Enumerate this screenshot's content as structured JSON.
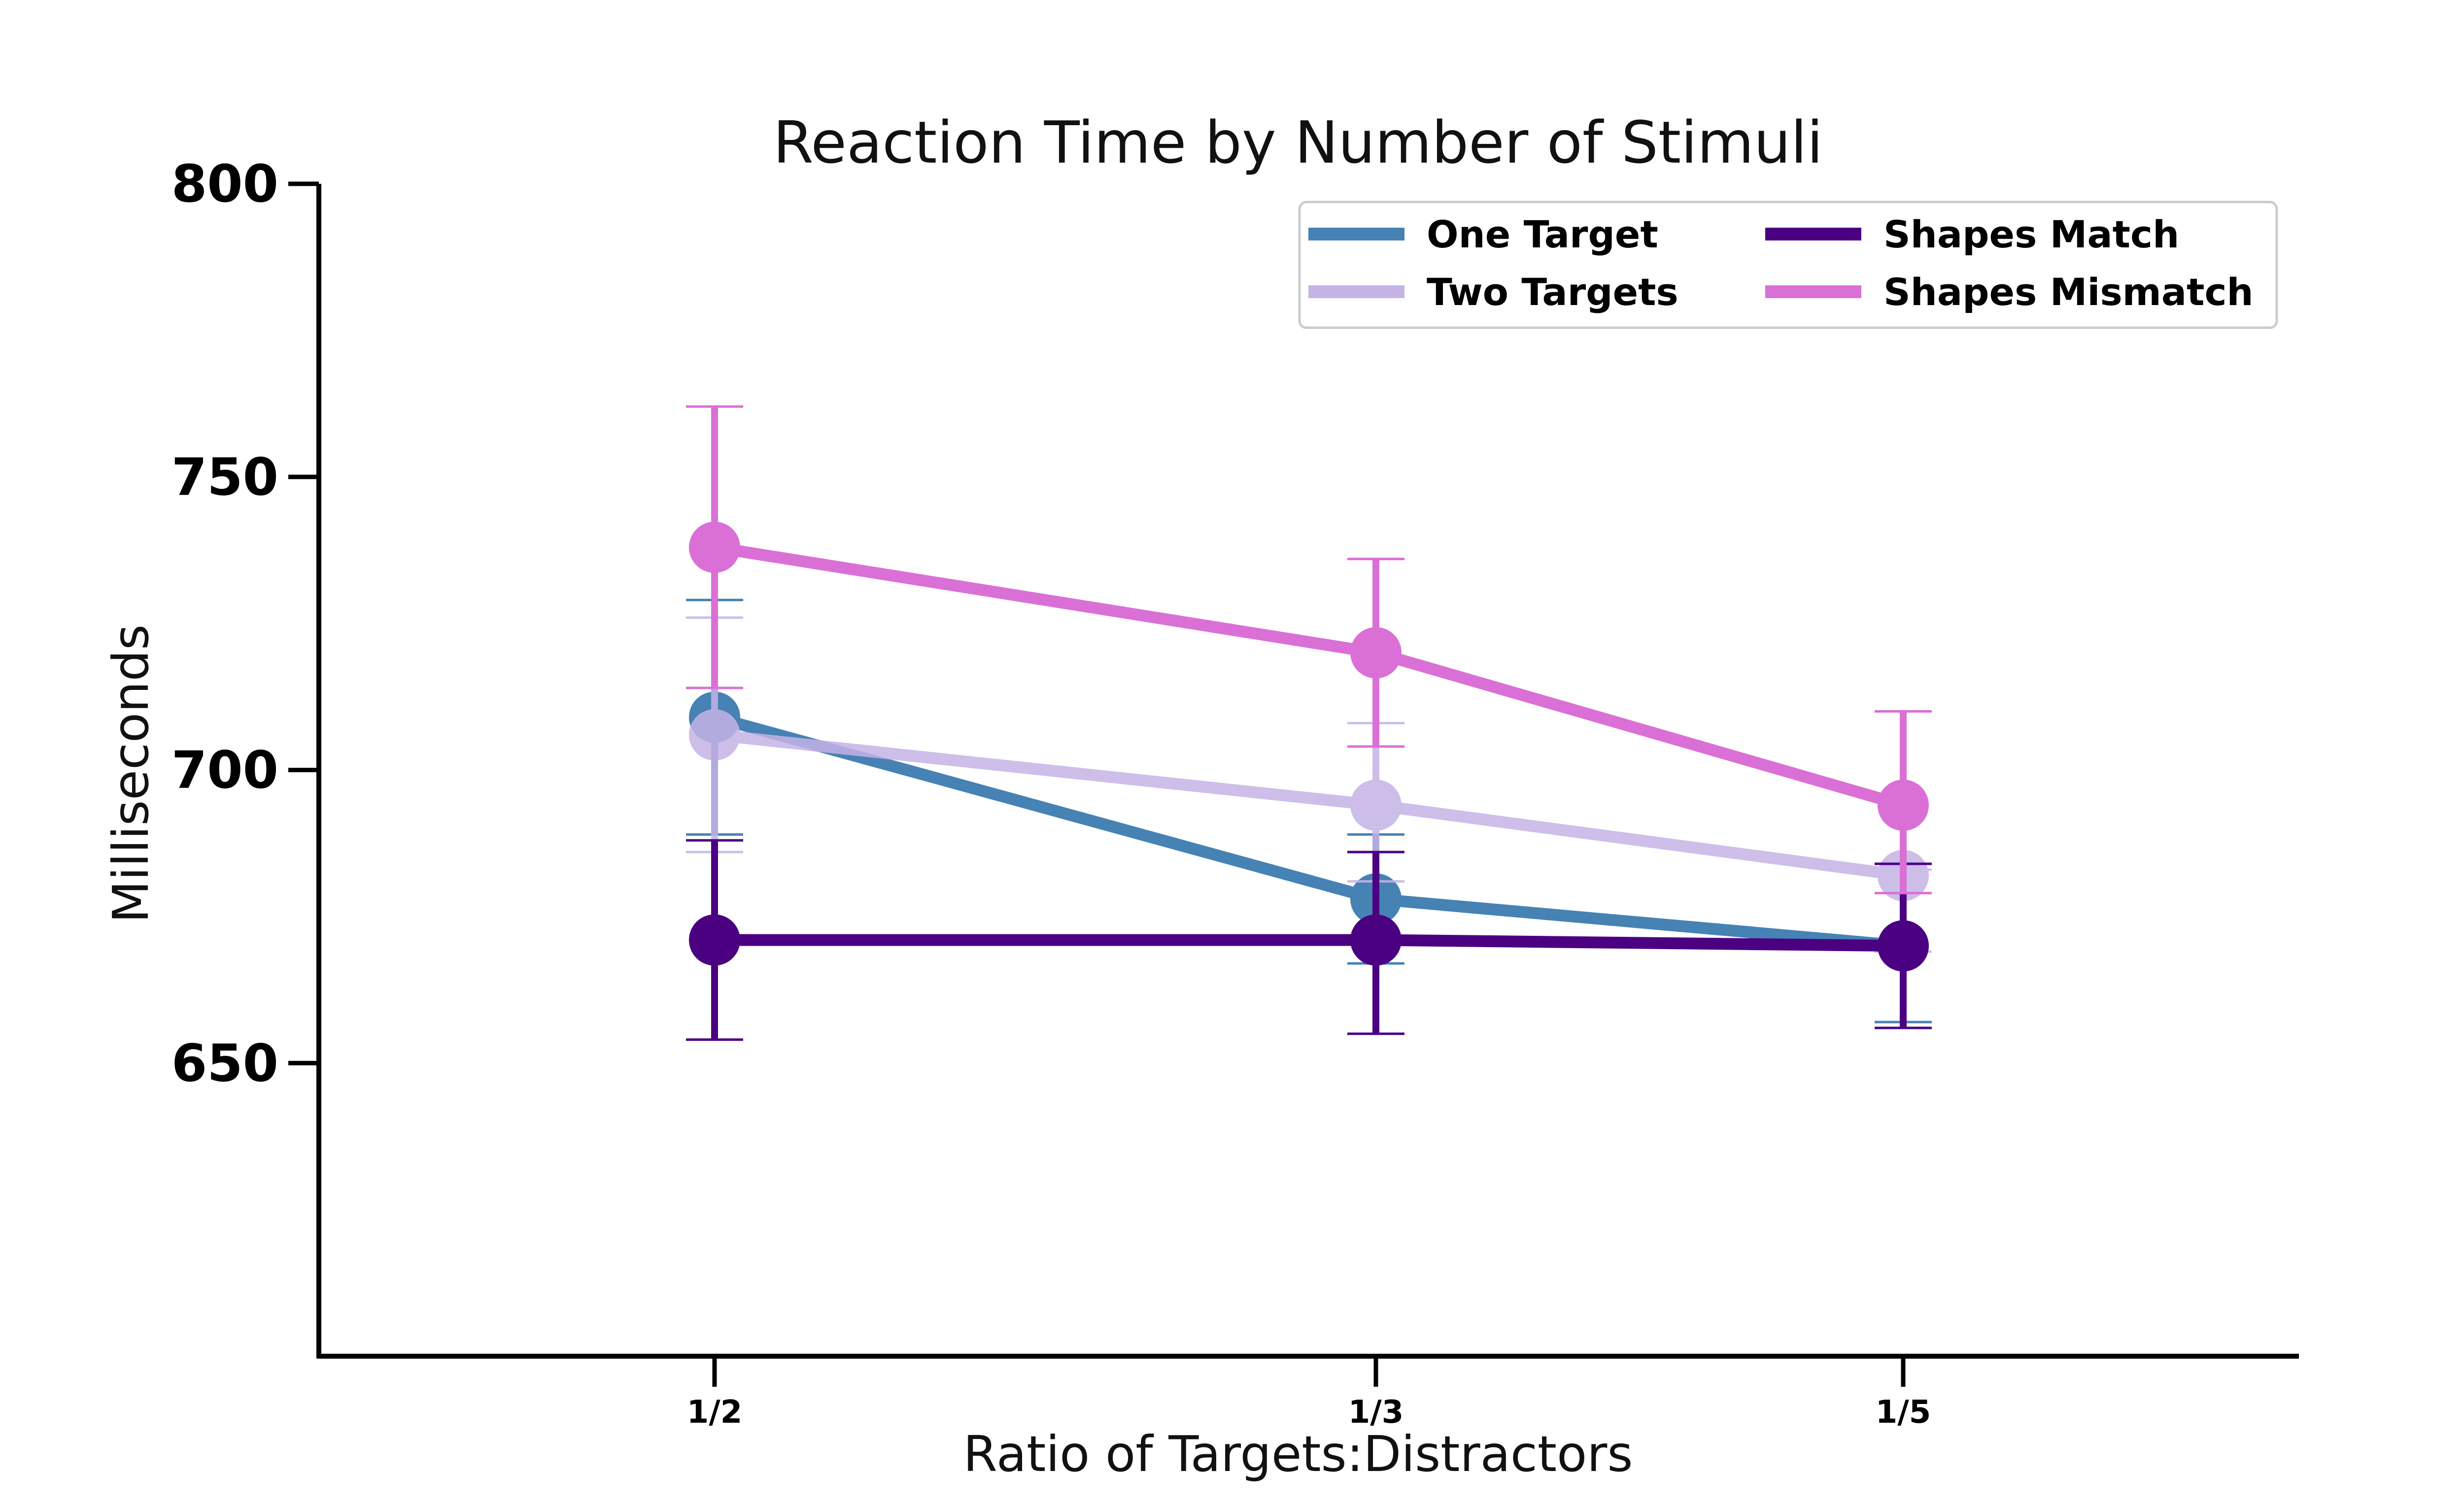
{
  "chart_data": {
    "type": "line",
    "title": "Reaction Time by Number of Stimuli",
    "xlabel": "Ratio of Targets:Distractors",
    "ylabel": "Milliseconds",
    "categories": [
      "1/2",
      "1/3",
      "1/5"
    ],
    "ylim": [
      600,
      800
    ],
    "yticks": [
      "650",
      "700",
      "750",
      "800"
    ],
    "grid": false,
    "legend_placement": "top-right",
    "series": [
      {
        "name": "One Target",
        "color": "#4682b4",
        "opacity": 1.0,
        "values": [
          709,
          678,
          670
        ],
        "err_low": [
          689,
          667,
          657
        ],
        "err_high": [
          729,
          689,
          684
        ]
      },
      {
        "name": "Two Targets",
        "color": "#c5b3e6",
        "opacity": 0.85,
        "values": [
          706,
          694,
          682
        ],
        "err_low": [
          686,
          681,
          669
        ],
        "err_high": [
          726,
          708,
          683
        ]
      },
      {
        "name": "Shapes Match",
        "color": "#4b0082",
        "opacity": 1.0,
        "values": [
          671,
          671,
          670
        ],
        "err_low": [
          654,
          655,
          656
        ],
        "err_high": [
          688,
          686,
          684
        ]
      },
      {
        "name": "Shapes Mismatch",
        "color": "#da70d6",
        "opacity": 1.0,
        "values": [
          738,
          720,
          694
        ],
        "err_low": [
          714,
          704,
          679
        ],
        "err_high": [
          762,
          736,
          710
        ]
      }
    ]
  }
}
